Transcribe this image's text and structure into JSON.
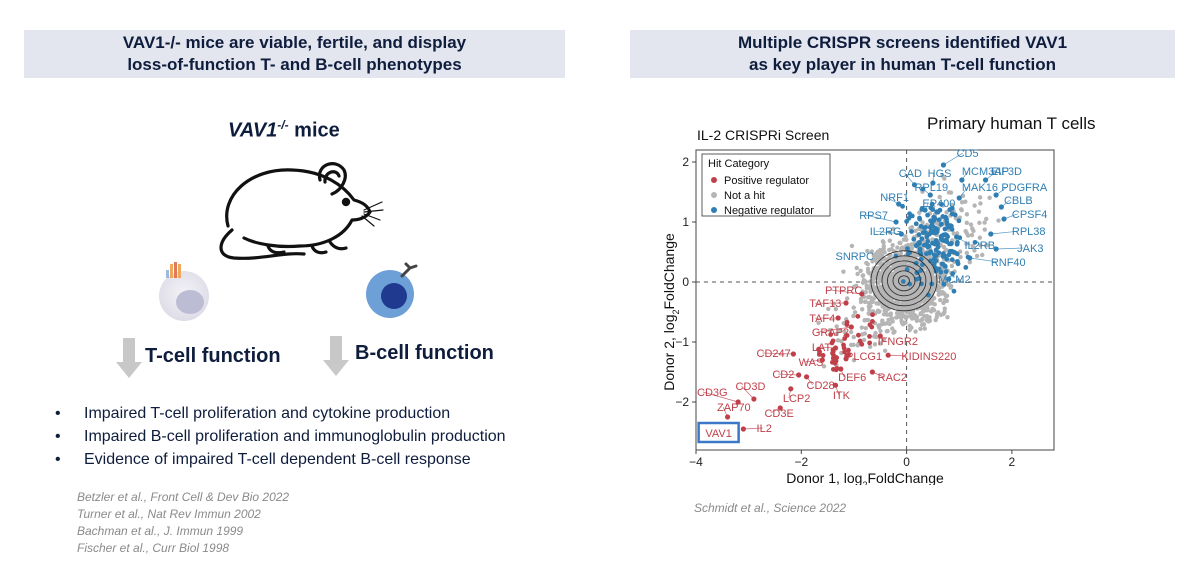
{
  "left_panel": {
    "banner_line1": "VAV1-/- mice are viable, fertile, and display",
    "banner_line2": "loss-of-function T- and B-cell phenotypes",
    "mice_title_gene": "VAV1",
    "mice_title_sup": "-/-",
    "mice_title_rest": " mice",
    "t_cell_label": "T-cell function",
    "b_cell_label": "B-cell function",
    "bullets": [
      "Impaired T-cell proliferation and cytokine production",
      "Impaired B-cell proliferation and immunoglobulin production",
      "Evidence of impaired T-cell dependent B-cell response"
    ],
    "references": [
      "Betzler et al., Front Cell & Dev Bio 2022",
      "Turner et al., Nat Rev Immun 2002",
      "Bachman et al., J. Immun 1999",
      "Fischer et al., Curr Biol 1998"
    ]
  },
  "right_panel": {
    "banner_line1": "Multiple CRISPR screens identified VAV1",
    "banner_line2": "as key player in human T-cell function",
    "subtitle": "Primary human T cells",
    "reference": "Schmidt et al., Science 2022"
  },
  "colors": {
    "positive": "#c0404a",
    "negative": "#2f7fb4",
    "not_hit": "#b5b5b5",
    "highlight_box": "#3b78c8"
  },
  "chart_data": {
    "type": "scatter",
    "title": "IL-2 CRISPRi Screen",
    "xlabel": "Donor 1, log2FoldChange",
    "ylabel": "Donor 2, log2FoldChange",
    "xlim": [
      -4,
      2.8
    ],
    "ylim": [
      -2.8,
      2.2
    ],
    "xticks": [
      -4,
      -2,
      0,
      2
    ],
    "yticks": [
      2,
      1,
      0,
      -1,
      -2
    ],
    "tick_labels_x": [
      "−4",
      "−2",
      "0",
      "2"
    ],
    "tick_labels_y": [
      "2",
      "1",
      "0",
      "−1",
      "−2"
    ],
    "legend": {
      "title": "Hit Category",
      "position": "top-left",
      "entries": [
        "Positive regulator",
        "Not a hit",
        "Negative regulator"
      ]
    },
    "highlighted_gene": "VAV1",
    "positive_regulators": [
      {
        "gene": "VAV1",
        "x": -3.55,
        "y": -2.38
      },
      {
        "gene": "ZAP70",
        "x": -3.4,
        "y": -2.25
      },
      {
        "gene": "IL2",
        "x": -3.1,
        "y": -2.45
      },
      {
        "gene": "CD3G",
        "x": -3.2,
        "y": -2.0
      },
      {
        "gene": "CD3D",
        "x": -2.9,
        "y": -1.95
      },
      {
        "gene": "CD3E",
        "x": -2.4,
        "y": -2.1
      },
      {
        "gene": "LCP2",
        "x": -2.2,
        "y": -1.78
      },
      {
        "gene": "CD2",
        "x": -2.05,
        "y": -1.55
      },
      {
        "gene": "CD28",
        "x": -1.9,
        "y": -1.58
      },
      {
        "gene": "ITK",
        "x": -1.35,
        "y": -1.72
      },
      {
        "gene": "DEF6",
        "x": -1.25,
        "y": -1.45
      },
      {
        "gene": "RAC2",
        "x": -0.65,
        "y": -1.5
      },
      {
        "gene": "WAS",
        "x": -1.6,
        "y": -1.3
      },
      {
        "gene": "CD247",
        "x": -2.15,
        "y": -1.2
      },
      {
        "gene": "LAT",
        "x": -1.35,
        "y": -1.1
      },
      {
        "gene": "PLCG1",
        "x": -1.15,
        "y": -1.28
      },
      {
        "gene": "KIDINS220",
        "x": -0.35,
        "y": -1.22
      },
      {
        "gene": "IFNGR2",
        "x": -0.5,
        "y": -0.9
      },
      {
        "gene": "GRAP2",
        "x": -1.05,
        "y": -0.75
      },
      {
        "gene": "TAF4",
        "x": -1.3,
        "y": -0.6
      },
      {
        "gene": "TAF13",
        "x": -1.15,
        "y": -0.35
      },
      {
        "gene": "PTPRC",
        "x": -0.85,
        "y": -0.2
      }
    ],
    "negative_regulators": [
      {
        "gene": "CD5",
        "x": 0.7,
        "y": 1.95
      },
      {
        "gene": "HGS",
        "x": 0.5,
        "y": 1.65
      },
      {
        "gene": "CAD",
        "x": 0.15,
        "y": 1.62
      },
      {
        "gene": "MCM3AP",
        "x": 1.05,
        "y": 1.7
      },
      {
        "gene": "EIF3D",
        "x": 1.5,
        "y": 1.7
      },
      {
        "gene": "RPL19",
        "x": 0.45,
        "y": 1.45
      },
      {
        "gene": "MAK16",
        "x": 1.0,
        "y": 1.4
      },
      {
        "gene": "PDGFRA",
        "x": 1.7,
        "y": 1.45
      },
      {
        "gene": "NRF1",
        "x": -0.15,
        "y": 1.3
      },
      {
        "gene": "EP400",
        "x": 0.35,
        "y": 1.2
      },
      {
        "gene": "CBLB",
        "x": 1.8,
        "y": 1.25
      },
      {
        "gene": "RPS7",
        "x": -0.2,
        "y": 1.0
      },
      {
        "gene": "CPSF4",
        "x": 1.85,
        "y": 1.05
      },
      {
        "gene": "IL2RG",
        "x": -0.1,
        "y": 0.8
      },
      {
        "gene": "IL2RB",
        "x": 0.95,
        "y": 0.75
      },
      {
        "gene": "RPL38",
        "x": 1.6,
        "y": 0.8
      },
      {
        "gene": "JAK3",
        "x": 1.7,
        "y": 0.55
      },
      {
        "gene": "RNF40",
        "x": 1.2,
        "y": 0.4
      },
      {
        "gene": "MCM2",
        "x": 0.8,
        "y": 0.05
      }
    ],
    "unlabeled_point_pattern": "Dense cloud of Not-a-hit points centered at (0, 0) with contour lines; blue Negative-regulator cluster around (0.6, 0.7)."
  }
}
